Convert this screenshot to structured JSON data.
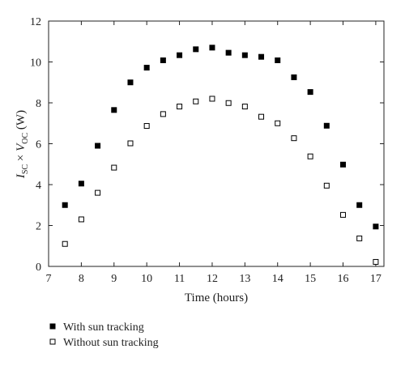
{
  "chart_data": {
    "type": "scatter",
    "xlabel": "Time (hours)",
    "ylabel": {
      "var1": "I",
      "sub1": "SC",
      "times": " × ",
      "var2": "V",
      "sub2": "OC",
      "unit": " (W)"
    },
    "xlim": [
      7,
      17.25
    ],
    "ylim": [
      0,
      12
    ],
    "xticks": [
      7,
      8,
      9,
      10,
      11,
      12,
      13,
      14,
      15,
      16,
      17
    ],
    "yticks": [
      0,
      2,
      4,
      6,
      8,
      10,
      12
    ],
    "grid": false,
    "legend_position": "bottom-left",
    "series": [
      {
        "name": "With sun tracking",
        "marker": "filled-square",
        "color": "#000000",
        "x": [
          7.5,
          8,
          8.5,
          9,
          9.5,
          10,
          10.5,
          11,
          11.5,
          12,
          12.5,
          13,
          13.5,
          14,
          14.5,
          15,
          15.5,
          16,
          16.5,
          17
        ],
        "y": [
          3.0,
          4.05,
          5.9,
          7.65,
          9.0,
          9.72,
          10.08,
          10.33,
          10.62,
          10.7,
          10.45,
          10.33,
          10.25,
          10.08,
          9.25,
          8.53,
          6.88,
          4.98,
          3.0,
          1.95
        ]
      },
      {
        "name": "Without sun tracking",
        "marker": "open-square",
        "color": "#000000",
        "x": [
          7.5,
          8,
          8.5,
          9,
          9.5,
          10,
          10.5,
          11,
          11.5,
          12,
          12.5,
          13,
          13.5,
          14,
          14.5,
          15,
          15.5,
          16,
          16.5,
          17
        ],
        "y": [
          1.1,
          2.3,
          3.6,
          4.83,
          6.02,
          6.87,
          7.45,
          7.82,
          8.07,
          8.2,
          7.99,
          7.82,
          7.32,
          7.0,
          6.27,
          5.38,
          3.95,
          2.52,
          1.37,
          0.22
        ]
      }
    ]
  }
}
